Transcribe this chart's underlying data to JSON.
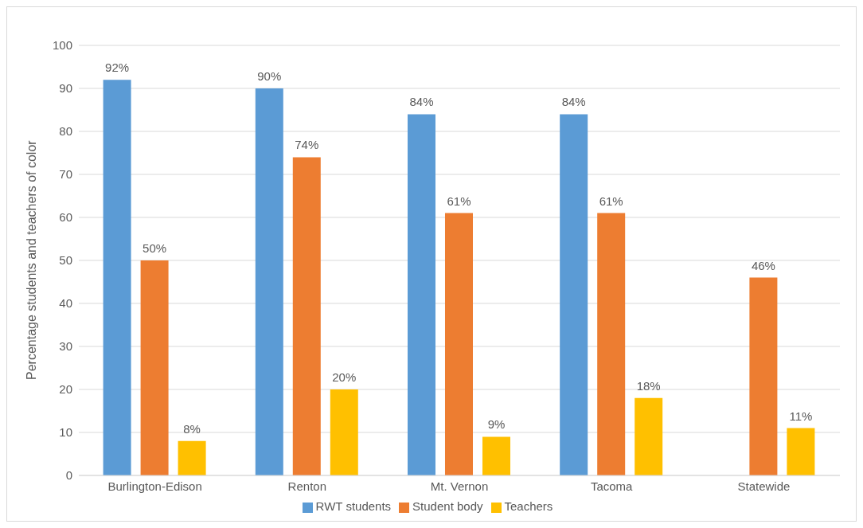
{
  "chart_data": {
    "type": "bar",
    "ylabel": "Percentage students and teachers of color",
    "categories": [
      "Burlington-Edison",
      "Renton",
      "Mt. Vernon",
      "Tacoma",
      "Statewide"
    ],
    "series": [
      {
        "name": "RWT students",
        "color": "#5b9bd5",
        "values": [
          92,
          90,
          84,
          84,
          null
        ],
        "value_labels": [
          "92%",
          "90%",
          "84%",
          "84%",
          null
        ]
      },
      {
        "name": "Student body",
        "color": "#ed7d31",
        "values": [
          50,
          74,
          61,
          61,
          46
        ],
        "value_labels": [
          "50%",
          "74%",
          "61%",
          "61%",
          "46%"
        ]
      },
      {
        "name": "Teachers",
        "color": "#ffc000",
        "values": [
          8,
          20,
          9,
          18,
          11
        ],
        "value_labels": [
          "8%",
          "20%",
          "9%",
          "18%",
          "11%"
        ]
      }
    ],
    "ylim": [
      0,
      100
    ],
    "yticks": [
      0,
      10,
      20,
      30,
      40,
      50,
      60,
      70,
      80,
      90,
      100
    ],
    "grid": "y",
    "legend": "bottom"
  }
}
